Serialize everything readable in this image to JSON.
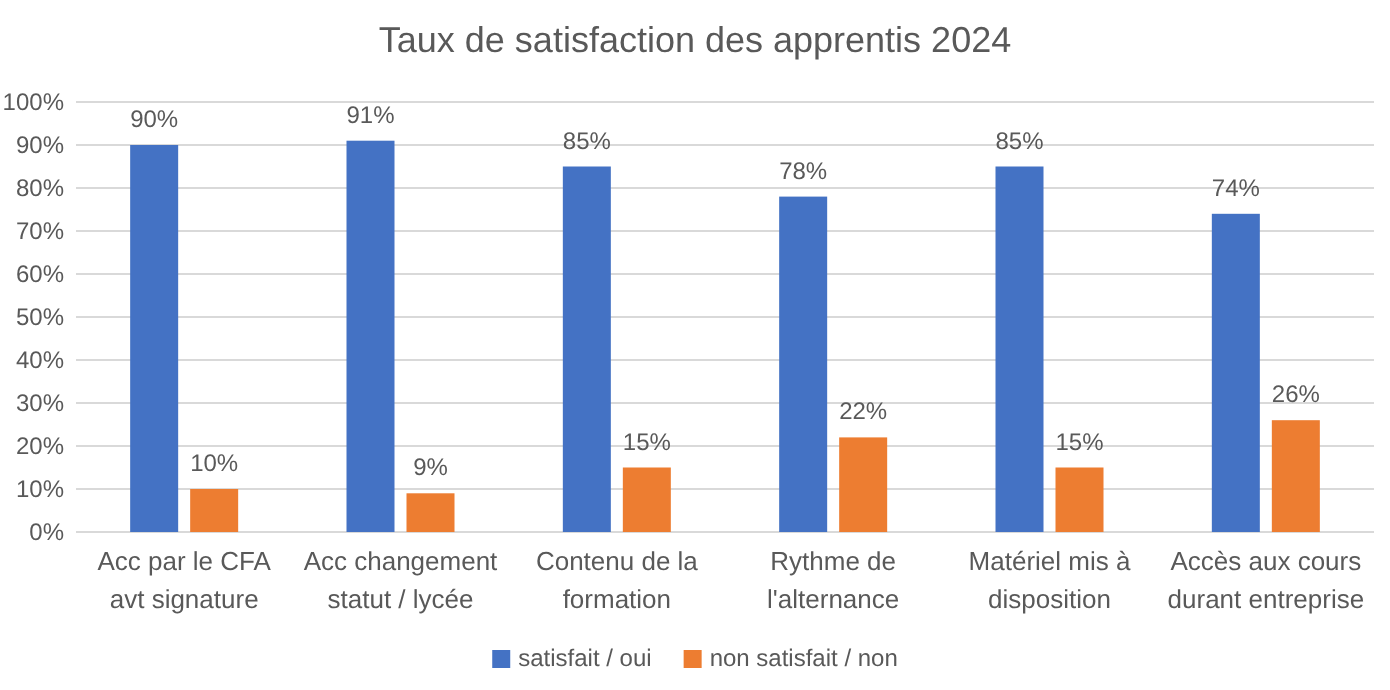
{
  "chart_data": {
    "type": "bar",
    "title": "Taux de satisfaction des apprentis 2024",
    "categories": [
      "Acc par le CFA avt signature",
      "Acc changement statut / lycée",
      "Contenu de la formation",
      "Rythme de l'alternance",
      "Matériel mis à disposition",
      "Accès aux cours durant entreprise"
    ],
    "series": [
      {
        "name": "satisfait / oui",
        "color": "#4472c4",
        "values": [
          90,
          91,
          85,
          78,
          85,
          74
        ],
        "value_labels": [
          "90%",
          "91%",
          "85%",
          "78%",
          "85%",
          "74%"
        ]
      },
      {
        "name": "non satisfait / non",
        "color": "#ed7d31",
        "values": [
          10,
          9,
          15,
          22,
          15,
          26
        ],
        "value_labels": [
          "10%",
          "9%",
          "15%",
          "22%",
          "15%",
          "26%"
        ]
      }
    ],
    "ylim": [
      0,
      100
    ],
    "yticks": [
      {
        "value": 0,
        "label": "0%"
      },
      {
        "value": 10,
        "label": "10%"
      },
      {
        "value": 20,
        "label": "20%"
      },
      {
        "value": 30,
        "label": "30%"
      },
      {
        "value": 40,
        "label": "40%"
      },
      {
        "value": 50,
        "label": "50%"
      },
      {
        "value": 60,
        "label": "60%"
      },
      {
        "value": 70,
        "label": "70%"
      },
      {
        "value": 80,
        "label": "80%"
      },
      {
        "value": 90,
        "label": "90%"
      },
      {
        "value": 100,
        "label": "100%"
      }
    ],
    "grid": "y",
    "legend": "bottom"
  }
}
